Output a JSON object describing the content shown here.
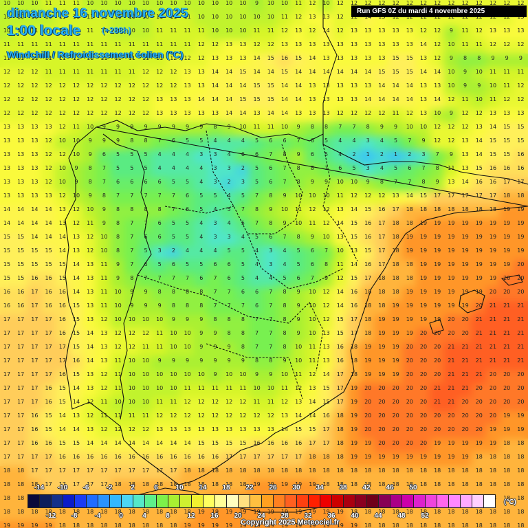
{
  "header": {
    "date": "dimanche 16 novembre 2025",
    "time": "1:00 locale",
    "offset": "(+288h)",
    "variable": "Windchill / Refroidissement éolien (°C)",
    "run": "Run GFS 0Z du mardi 4 novembre 2025"
  },
  "legend": {
    "unit": "(°C)",
    "top_labels": [
      "-14",
      "-10",
      "-6",
      "-2",
      "2",
      "6",
      "10",
      "14",
      "18",
      "22",
      "26",
      "30",
      "34",
      "38",
      "42",
      "46",
      "50"
    ],
    "bottom_labels": [
      "-12",
      "-8",
      "-4",
      "0",
      "4",
      "8",
      "12",
      "16",
      "20",
      "24",
      "28",
      "32",
      "36",
      "40",
      "44",
      "48",
      "52"
    ],
    "colors": [
      "#0a0a3a",
      "#0d1f5c",
      "#13308a",
      "#0a1cc9",
      "#1a3cf5",
      "#1f6cff",
      "#2a93ff",
      "#33b8ff",
      "#4cd6f5",
      "#55e8c8",
      "#5ef08a",
      "#7df04a",
      "#a8f032",
      "#cff030",
      "#f0f030",
      "#ffff60",
      "#ffff99",
      "#ffffc0",
      "#ffe080",
      "#ffc040",
      "#ffa020",
      "#ff8020",
      "#ff6020",
      "#ff4010",
      "#ff2000",
      "#ee0000",
      "#cc0000",
      "#aa0010",
      "#8a0020",
      "#70001a",
      "#880055",
      "#aa0088",
      "#cc00aa",
      "#dd22cc",
      "#ee44dd",
      "#ff66ee",
      "#ff88ff",
      "#ffaaff",
      "#ffd0ff",
      "#ffffff"
    ]
  },
  "map": {
    "region": "Iberian Peninsula",
    "grid_values": [
      "10 10 10 11 11 11 10 10 10 10 10 10 10 10 10 10 10 10 9 10 10 11 12 10 12 12 12 12 12 12 12 12 12 12 12 12 12 12",
      "10 10 10 10 11 11 11 11 10 10 10 11 11 11 10 10 10 10 10 10 11 12 13 13 12 12 14 13 12 12 12 12 12 12 12 12 12 13",
      "10 11 11 11 11 11 11 11 10 10 10 11 11 11 11 10 10 10 11 11 12 13 12 14 12 13 13 13 13 13 12 12 9 11 12 13 13 13",
      "11 11 11 11 11 11 11 11 11 11 11 11 11 11 12 12 13 13 12 12 13 13 13 13 13 13 13 13 13 13 14 12 10 11 11 12 12 12",
      "11 11 11 11 11 11 11 11 11 11 11 11 12 12 12 13 13 13 14 15 16 15 14 13 13 13 13 13 15 15 13 12 9 8 8 9 9 9",
      "12 12 12 11 11 11 11 11 11 11 12 12 12 13 13 14 14 15 14 14 15 14 14 14 14 14 14 15 15 15 14 14 10 9 10 11 11 11",
      "12 12 12 12 12 12 12 12 12 12 12 12 12 13 13 14 14 14 15 15 14 14 13 13 13 13 13 14 14 14 13 13 10 9 9 10 11 12",
      "12 12 12 12 12 12 12 12 12 12 12 13 13 13 14 14 14 15 15 15 14 14 13 13 13 13 14 14 14 14 13 14 12 11 10 11 12 12",
      "12 12 12 12 12 12 12 12 12 12 12 13 13 13 13 13 14 14 13 14 14 13 13 13 12 12 12 12 11 12 13 10 9 12 12 13 13 13",
      "13 13 13 13 12 11 10 9 9 9 9 9 9 9 9 8 9 10 11 11 10 9 8 8 7 7 8 9 9 10 10 12 12 12 13 14 15 15",
      "13 13 13 12 10 10 9 9 9 8 8 7 6 5 5 4 4 4 5 6 6 7 6 5 4 4 3 4 5 7 9 12 12 13 14 15 15 15",
      "13 13 13 12 12 10 9 6 5 5 5 4 4 4 3 3 4 6 6 7 8 9 6 5 4 2 1 2 1 2 3 7 9 13 14 15 15 16",
      "13 13 13 12 10 9 8 7 5 5 5 4 4 4 4 3 3 2 5 6 7 8 8 7 6 5 3 4 5 6 7 8 11 13 15 16 16 16",
      "13 13 13 12 10 9 8 7 6 6 6 6 5 5 4 3 2 3 5 6 7 8 9 9 10 10 9 8 7 7 8 9 13 14 16 16 17 17",
      "13 13 13 13 12 10 9 8 7 7 7 7 7 6 5 5 4 5 7 8 9 10 10 10 11 12 12 12 13 14 15 17 17 17 17 17 18 18",
      "14 14 14 14 13 12 10 9 8 8 8 8 7 6 5 4 5 7 8 9 10 11 12 12 13 14 15 16 17 18 18 18 18 18 18 18 19 19",
      "14 14 14 14 13 12 11 9 8 7 7 6 5 5 4 3 4 5 7 8 9 10 11 12 14 15 16 17 18 18 19 19 19 19 19 19 19 19",
      "15 15 14 14 14 13 12 10 8 7 6 6 5 5 4 3 3 4 5 6 7 8 9 10 13 15 16 17 18 19 19 19 19 19 19 19 19 19",
      "15 15 15 15 14 13 12 10 8 7 5 3 2 4 4 4 5 5 4 3 4 5 6 7 10 13 15 17 18 19 19 19 19 19 19 19 19 19",
      "15 15 15 15 15 14 13 11 9 7 6 5 6 5 5 6 6 5 4 3 4 5 6 8 11 14 16 17 18 18 19 19 19 19 19 19 19 20",
      "15 15 16 16 15 14 13 11 9 8 7 7 7 7 6 7 6 5 4 4 5 6 7 9 12 15 17 18 18 18 19 19 19 19 19 19 20 20",
      "16 16 17 16 16 14 13 11 10 9 9 8 8 8 8 7 7 6 6 7 8 9 10 12 14 16 18 18 18 19 19 19 19 19 19 20 20 20",
      "16 16 17 16 16 15 13 11 10 9 9 9 8 8 8 7 7 7 6 7 8 9 10 12 14 16 18 18 19 19 19 19 19 19 20 21 21 21",
      "17 17 17 17 16 15 13 12 10 10 10 10 9 9 9 8 8 8 7 7 8 9 10 12 15 17 18 19 19 19 19 19 20 20 21 21 21 21",
      "17 17 17 17 16 15 14 13 12 12 12 11 10 10 9 9 8 8 7 7 8 9 10 13 15 17 18 19 19 19 20 20 20 20 21 21 21 21",
      "17 17 17 17 17 15 14 13 12 12 11 11 10 10 9 9 9 8 7 7 8 10 11 13 16 18 19 19 19 20 20 20 21 21 21 21 21 21",
      "17 17 17 17 17 16 14 13 11 10 10 9 9 9 9 9 9 9 8 8 9 10 11 13 16 18 19 19 19 20 20 20 21 21 21 21 21 21",
      "17 17 17 17 16 15 13 12 11 10 10 10 10 10 10 9 10 10 9 9 10 11 12 14 17 18 19 19 19 20 20 20 21 21 21 20 20 20",
      "17 17 17 16 15 14 13 12 11 10 10 10 10 11 11 11 11 11 10 10 11 12 13 15 17 19 20 20 20 20 20 21 21 21 20 20 20 20",
      "17 17 17 16 15 14 12 11 10 10 10 11 11 12 12 12 12 12 11 11 12 13 14 15 17 19 20 20 20 20 20 21 21 20 20 20 20 20",
      "17 17 16 15 14 13 12 11 11 11 11 12 12 12 12 12 12 12 12 12 13 14 14 16 18 19 20 20 20 20 20 20 20 20 20 20 19 19",
      "17 17 16 15 14 14 13 12 12 12 12 13 13 13 13 13 13 13 13 13 14 15 15 17 18 19 20 20 20 20 20 20 20 20 20 19 19 19",
      "17 17 16 16 15 15 14 14 14 14 14 14 14 14 15 15 15 15 16 16 16 16 17 17 18 19 19 20 20 20 20 19 19 19 19 19 18 18",
      "17 17 17 17 16 16 16 16 16 16 16 16 16 16 16 16 17 17 17 17 17 17 18 18 18 19 19 19 19 19 19 19 19 19 18 18 18 18",
      "18 18 17 17 17 17 17 17 17 17 17 17 17 18 18 18 18 18 18 18 18 18 18 18 18 18 18 18 18 18 18 18 18 18 18 18 18 18",
      "18 18 18 17 17 17 17 17 18 18 18 18 18 18 18 18 18 18 19 19 19 19 19 18 18 18 18 18 18 18 18 18 18 18 18 18 18 18",
      "18 18 18 18 18 18 18 18 18 18 18 18 18 18 18 19 19 19 19 19 19 19 19 19 18 18 18 18 18 18 18 18 18 18 18 18 18 18",
      "18 18 18 18 18 18 18 18 18 18 18 18 18 18 19 19 19 19 19 19 19 19 19 19 19 18 18 18 18 18 18 18 18 18 18 18 18 18",
      "19 19 19 19 18 18 18 18 18 18 18 18 18 19 19 19 19 19 19 19 19 19 19 19 19 19 18 18 18 18 18 18 18 18 18 18 18 18"
    ]
  },
  "copyright": "Copyright 2025 Meteociel.fr"
}
